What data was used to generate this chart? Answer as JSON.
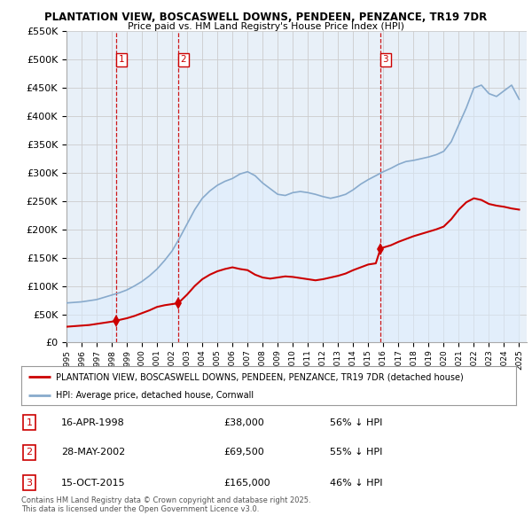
{
  "title1": "PLANTATION VIEW, BOSCASWELL DOWNS, PENDEEN, PENZANCE, TR19 7DR",
  "title2": "Price paid vs. HM Land Registry's House Price Index (HPI)",
  "legend_label_red": "PLANTATION VIEW, BOSCASWELL DOWNS, PENDEEN, PENZANCE, TR19 7DR (detached house)",
  "legend_label_blue": "HPI: Average price, detached house, Cornwall",
  "footnote": "Contains HM Land Registry data © Crown copyright and database right 2025.\nThis data is licensed under the Open Government Licence v3.0.",
  "sale_points": [
    {
      "date": 1998.29,
      "price": 38000,
      "label": "1"
    },
    {
      "date": 2002.41,
      "price": 69500,
      "label": "2"
    },
    {
      "date": 2015.79,
      "price": 165000,
      "label": "3"
    }
  ],
  "table_rows": [
    {
      "num": "1",
      "date": "16-APR-1998",
      "price": "£38,000",
      "pct": "56% ↓ HPI"
    },
    {
      "num": "2",
      "date": "28-MAY-2002",
      "price": "£69,500",
      "pct": "55% ↓ HPI"
    },
    {
      "num": "3",
      "date": "15-OCT-2015",
      "price": "£165,000",
      "pct": "46% ↓ HPI"
    }
  ],
  "red_color": "#cc0000",
  "blue_color": "#88aacc",
  "blue_fill": "#ddeeff",
  "vline_color": "#cc0000",
  "label_box_color": "#cc0000",
  "grid_color": "#cccccc",
  "bg_color": "#ffffff",
  "ylim": [
    0,
    550000
  ],
  "yticks": [
    0,
    50000,
    100000,
    150000,
    200000,
    250000,
    300000,
    350000,
    400000,
    450000,
    500000,
    550000
  ],
  "xmin": 1995.0,
  "xmax": 2025.5,
  "hpi_years": [
    1995.0,
    1995.5,
    1996.0,
    1996.5,
    1997.0,
    1997.5,
    1998.0,
    1998.5,
    1999.0,
    1999.5,
    2000.0,
    2000.5,
    2001.0,
    2001.5,
    2002.0,
    2002.5,
    2003.0,
    2003.5,
    2004.0,
    2004.5,
    2005.0,
    2005.5,
    2006.0,
    2006.5,
    2007.0,
    2007.5,
    2008.0,
    2008.5,
    2009.0,
    2009.5,
    2010.0,
    2010.5,
    2011.0,
    2011.5,
    2012.0,
    2012.5,
    2013.0,
    2013.5,
    2014.0,
    2014.5,
    2015.0,
    2015.5,
    2016.0,
    2016.5,
    2017.0,
    2017.5,
    2018.0,
    2018.5,
    2019.0,
    2019.5,
    2020.0,
    2020.5,
    2021.0,
    2021.5,
    2022.0,
    2022.5,
    2023.0,
    2023.5,
    2024.0,
    2024.5,
    2025.0
  ],
  "hpi_values": [
    70000,
    71000,
    72000,
    74000,
    76000,
    80000,
    84000,
    88000,
    93000,
    100000,
    108000,
    118000,
    130000,
    145000,
    162000,
    185000,
    210000,
    235000,
    255000,
    268000,
    278000,
    285000,
    290000,
    298000,
    302000,
    295000,
    282000,
    272000,
    262000,
    260000,
    265000,
    267000,
    265000,
    262000,
    258000,
    255000,
    258000,
    262000,
    270000,
    280000,
    288000,
    295000,
    302000,
    308000,
    315000,
    320000,
    322000,
    325000,
    328000,
    332000,
    338000,
    355000,
    385000,
    415000,
    450000,
    455000,
    440000,
    435000,
    445000,
    455000,
    430000
  ],
  "red_years": [
    1995.0,
    1995.5,
    1996.0,
    1996.5,
    1997.0,
    1997.5,
    1998.0,
    1998.3,
    1998.5,
    1999.0,
    1999.5,
    2000.0,
    2000.5,
    2001.0,
    2001.5,
    2002.0,
    2002.4,
    2002.5,
    2003.0,
    2003.5,
    2004.0,
    2004.5,
    2005.0,
    2005.5,
    2006.0,
    2006.5,
    2007.0,
    2007.5,
    2008.0,
    2008.5,
    2009.0,
    2009.5,
    2010.0,
    2010.5,
    2011.0,
    2011.5,
    2012.0,
    2012.5,
    2013.0,
    2013.5,
    2014.0,
    2014.5,
    2015.0,
    2015.5,
    2015.8,
    2016.0,
    2016.5,
    2017.0,
    2017.5,
    2018.0,
    2018.5,
    2019.0,
    2019.5,
    2020.0,
    2020.5,
    2021.0,
    2021.5,
    2022.0,
    2022.5,
    2023.0,
    2023.5,
    2024.0,
    2024.5,
    2025.0
  ],
  "red_values": [
    28000,
    29000,
    30000,
    31000,
    33000,
    35000,
    37000,
    38000,
    40000,
    43000,
    47000,
    52000,
    57000,
    63000,
    66000,
    68000,
    69500,
    72000,
    85000,
    100000,
    112000,
    120000,
    126000,
    130000,
    133000,
    130000,
    128000,
    120000,
    115000,
    113000,
    115000,
    117000,
    116000,
    114000,
    112000,
    110000,
    112000,
    115000,
    118000,
    122000,
    128000,
    133000,
    138000,
    140000,
    165000,
    168000,
    172000,
    178000,
    183000,
    188000,
    192000,
    196000,
    200000,
    205000,
    218000,
    235000,
    248000,
    255000,
    252000,
    245000,
    242000,
    240000,
    237000,
    235000
  ]
}
